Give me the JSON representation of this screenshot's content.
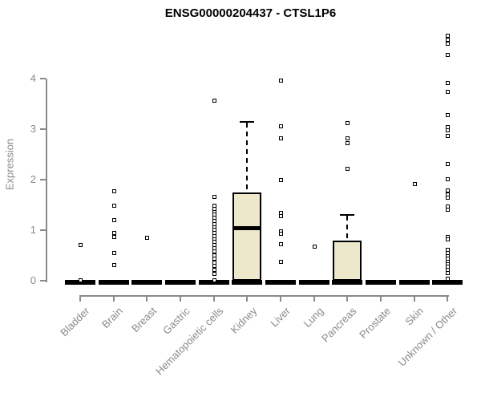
{
  "colors": {
    "background": "#ffffff",
    "axis_color": "#8a8a8a",
    "box_fill": "#EDE8CC",
    "data_color": "#000000"
  },
  "chart_data": {
    "type": "boxplot",
    "title": "ENSG00000204437 - CTSL1P6",
    "xlabel": "",
    "ylabel": "Expression",
    "ylim": [
      0,
      4.9
    ],
    "yticks": [
      0,
      1,
      2,
      3,
      4
    ],
    "grid": false,
    "legend": "none",
    "categories": [
      "Bladder",
      "Brain",
      "Breast",
      "Gastric",
      "Hematopoietic cells",
      "Kidney",
      "Liver",
      "Lung",
      "Pancreas",
      "Prostate",
      "Skin",
      "Unknown / Other"
    ],
    "series": [
      {
        "name": "Bladder",
        "median": 0,
        "q1": 0,
        "q3": 0,
        "whisker_low": 0,
        "whisker_high": 0,
        "outliers": [
          0.72,
          0.02
        ]
      },
      {
        "name": "Brain",
        "median": 0,
        "q1": 0,
        "q3": 0,
        "whisker_low": 0,
        "whisker_high": 0,
        "outliers": [
          1.78,
          1.49,
          1.2,
          0.95,
          0.88,
          0.56,
          0.32
        ]
      },
      {
        "name": "Breast",
        "median": 0,
        "q1": 0,
        "q3": 0,
        "whisker_low": 0,
        "whisker_high": 0,
        "outliers": [
          0.86
        ]
      },
      {
        "name": "Gastric",
        "median": 0,
        "q1": 0,
        "q3": 0,
        "whisker_low": 0,
        "whisker_high": 0,
        "outliers": []
      },
      {
        "name": "Hematopoietic cells",
        "median": 0,
        "q1": 0,
        "q3": 0,
        "whisker_low": 0,
        "whisker_high": 0,
        "outliers": [
          3.57,
          1.66,
          1.49,
          1.43,
          1.37,
          1.31,
          1.25,
          1.19,
          1.13,
          1.07,
          1.01,
          0.95,
          0.89,
          0.83,
          0.77,
          0.71,
          0.65,
          0.59,
          0.51,
          0.44,
          0.37,
          0.3,
          0.22,
          0.14,
          0.02
        ]
      },
      {
        "name": "Kidney",
        "median": 1.05,
        "q1": 0,
        "q3": 1.75,
        "whisker_low": 0,
        "whisker_high": 3.15,
        "outliers": []
      },
      {
        "name": "Liver",
        "median": 0,
        "q1": 0,
        "q3": 0,
        "whisker_low": 0,
        "whisker_high": 0,
        "outliers": [
          3.97,
          3.07,
          2.82,
          2.0,
          1.35,
          1.28,
          0.98,
          0.93,
          0.73,
          0.38
        ]
      },
      {
        "name": "Lung",
        "median": 0,
        "q1": 0,
        "q3": 0,
        "whisker_low": 0,
        "whisker_high": 0,
        "outliers": [
          0.68
        ]
      },
      {
        "name": "Pancreas",
        "median": 0,
        "q1": 0,
        "q3": 0.8,
        "whisker_low": 0,
        "whisker_high": 1.3,
        "outliers": [
          3.12,
          2.82,
          2.73,
          2.22
        ]
      },
      {
        "name": "Prostate",
        "median": 0,
        "q1": 0,
        "q3": 0,
        "whisker_low": 0,
        "whisker_high": 0,
        "outliers": []
      },
      {
        "name": "Skin",
        "median": 0,
        "q1": 0,
        "q3": 0,
        "whisker_low": 0,
        "whisker_high": 0,
        "outliers": [
          1.92
        ]
      },
      {
        "name": "Unknown / Other",
        "median": 0,
        "q1": 0,
        "q3": 0,
        "whisker_low": 0,
        "whisker_high": 0,
        "outliers": [
          4.86,
          4.78,
          4.7,
          4.48,
          3.92,
          3.75,
          3.29,
          3.05,
          2.98,
          2.87,
          2.31,
          2.02,
          1.8,
          1.72,
          1.65,
          1.48,
          1.42,
          0.88,
          0.82,
          0.62,
          0.56,
          0.5,
          0.44,
          0.38,
          0.33,
          0.28,
          0.22,
          0.16,
          0.05
        ]
      }
    ]
  }
}
